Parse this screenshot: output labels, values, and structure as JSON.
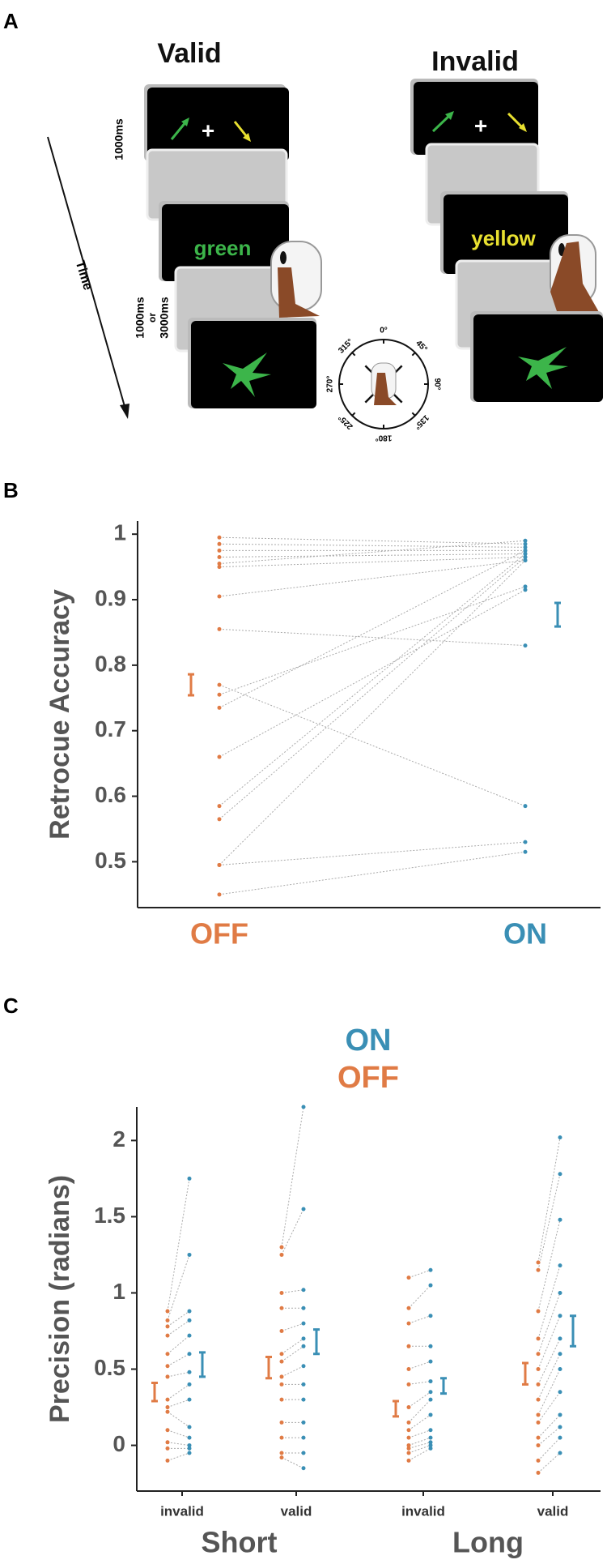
{
  "panel_labels": {
    "a": "A",
    "b": "B",
    "c": "C"
  },
  "panel_a": {
    "conditions": [
      "Valid",
      "Invalid"
    ],
    "fixation_duration": "1000ms",
    "isi_labels": [
      "1000ms",
      "or",
      "3000ms"
    ],
    "time_label": "Time",
    "cue_words": [
      "green",
      "yellow"
    ],
    "fixation": "+",
    "compass": [
      "0°",
      "45°",
      "90°",
      "135°",
      "180°",
      "225°",
      "270°",
      "315°"
    ]
  },
  "chart_data": [
    {
      "type": "dot",
      "ylabel": "Retrocue Accuracy",
      "ylim": [
        0.43,
        1.02
      ],
      "yticks": [
        0.5,
        0.6,
        0.7,
        0.8,
        0.9,
        1
      ],
      "series": [
        {
          "name": "OFF",
          "color": "#e07b45",
          "values": [
            0.995,
            0.985,
            0.975,
            0.965,
            0.955,
            0.95,
            0.905,
            0.855,
            0.77,
            0.755,
            0.735,
            0.66,
            0.585,
            0.565,
            0.495,
            0.495,
            0.45
          ],
          "mean": 0.77,
          "error": 0.016
        },
        {
          "name": "ON",
          "color": "#3a8fb5",
          "values": [
            0.985,
            0.98,
            0.975,
            0.97,
            0.99,
            0.965,
            0.96,
            0.83,
            0.585,
            0.92,
            0.975,
            0.915,
            0.97,
            0.965,
            0.53,
            0.96,
            0.515
          ],
          "mean": 0.877,
          "error": 0.018
        }
      ]
    },
    {
      "type": "strip",
      "ylabel": "Precision (radians)",
      "ylim": [
        -0.3,
        2.22
      ],
      "yticks": [
        0,
        0.5,
        1,
        1.5,
        2
      ],
      "categories": [
        "invalid",
        "valid",
        "invalid",
        "valid"
      ],
      "groups": [
        "Short",
        "Long"
      ],
      "series": [
        {
          "name": "ON",
          "color": "#3a8fb5",
          "points": [
            [
              1.75,
              1.25,
              0.88,
              0.82,
              0.72,
              0.6,
              0.48,
              0.4,
              0.3,
              0.12,
              0.05,
              0.0,
              -0.02,
              -0.05
            ],
            [
              2.22,
              1.55,
              1.02,
              0.9,
              0.8,
              0.7,
              0.65,
              0.52,
              0.4,
              0.3,
              0.15,
              0.05,
              -0.05,
              -0.15
            ],
            [
              1.15,
              1.05,
              0.85,
              0.65,
              0.55,
              0.42,
              0.35,
              0.3,
              0.2,
              0.1,
              0.05,
              0.02,
              0.0,
              -0.02
            ],
            [
              2.02,
              1.78,
              1.48,
              1.18,
              1.0,
              0.85,
              0.7,
              0.6,
              0.5,
              0.35,
              0.2,
              0.12,
              0.05,
              -0.05
            ]
          ],
          "means": [
            0.53,
            0.68,
            0.39,
            0.75
          ],
          "errors": [
            0.08,
            0.08,
            0.05,
            0.1
          ]
        },
        {
          "name": "OFF",
          "color": "#e07b45",
          "points": [
            [
              0.88,
              0.82,
              0.78,
              0.72,
              0.6,
              0.52,
              0.45,
              0.3,
              0.25,
              0.22,
              0.1,
              0.02,
              -0.02,
              -0.1
            ],
            [
              1.3,
              1.25,
              1.0,
              0.9,
              0.75,
              0.6,
              0.55,
              0.45,
              0.4,
              0.3,
              0.15,
              0.05,
              -0.05,
              -0.08
            ],
            [
              1.1,
              0.9,
              0.8,
              0.65,
              0.5,
              0.4,
              0.25,
              0.15,
              0.1,
              0.05,
              0.0,
              -0.02,
              -0.05,
              -0.1
            ],
            [
              1.2,
              1.15,
              0.88,
              0.7,
              0.6,
              0.5,
              0.4,
              0.3,
              0.2,
              0.15,
              0.05,
              0.0,
              -0.1,
              -0.18
            ]
          ],
          "means": [
            0.35,
            0.51,
            0.24,
            0.47
          ],
          "errors": [
            0.06,
            0.07,
            0.05,
            0.07
          ]
        }
      ]
    }
  ]
}
